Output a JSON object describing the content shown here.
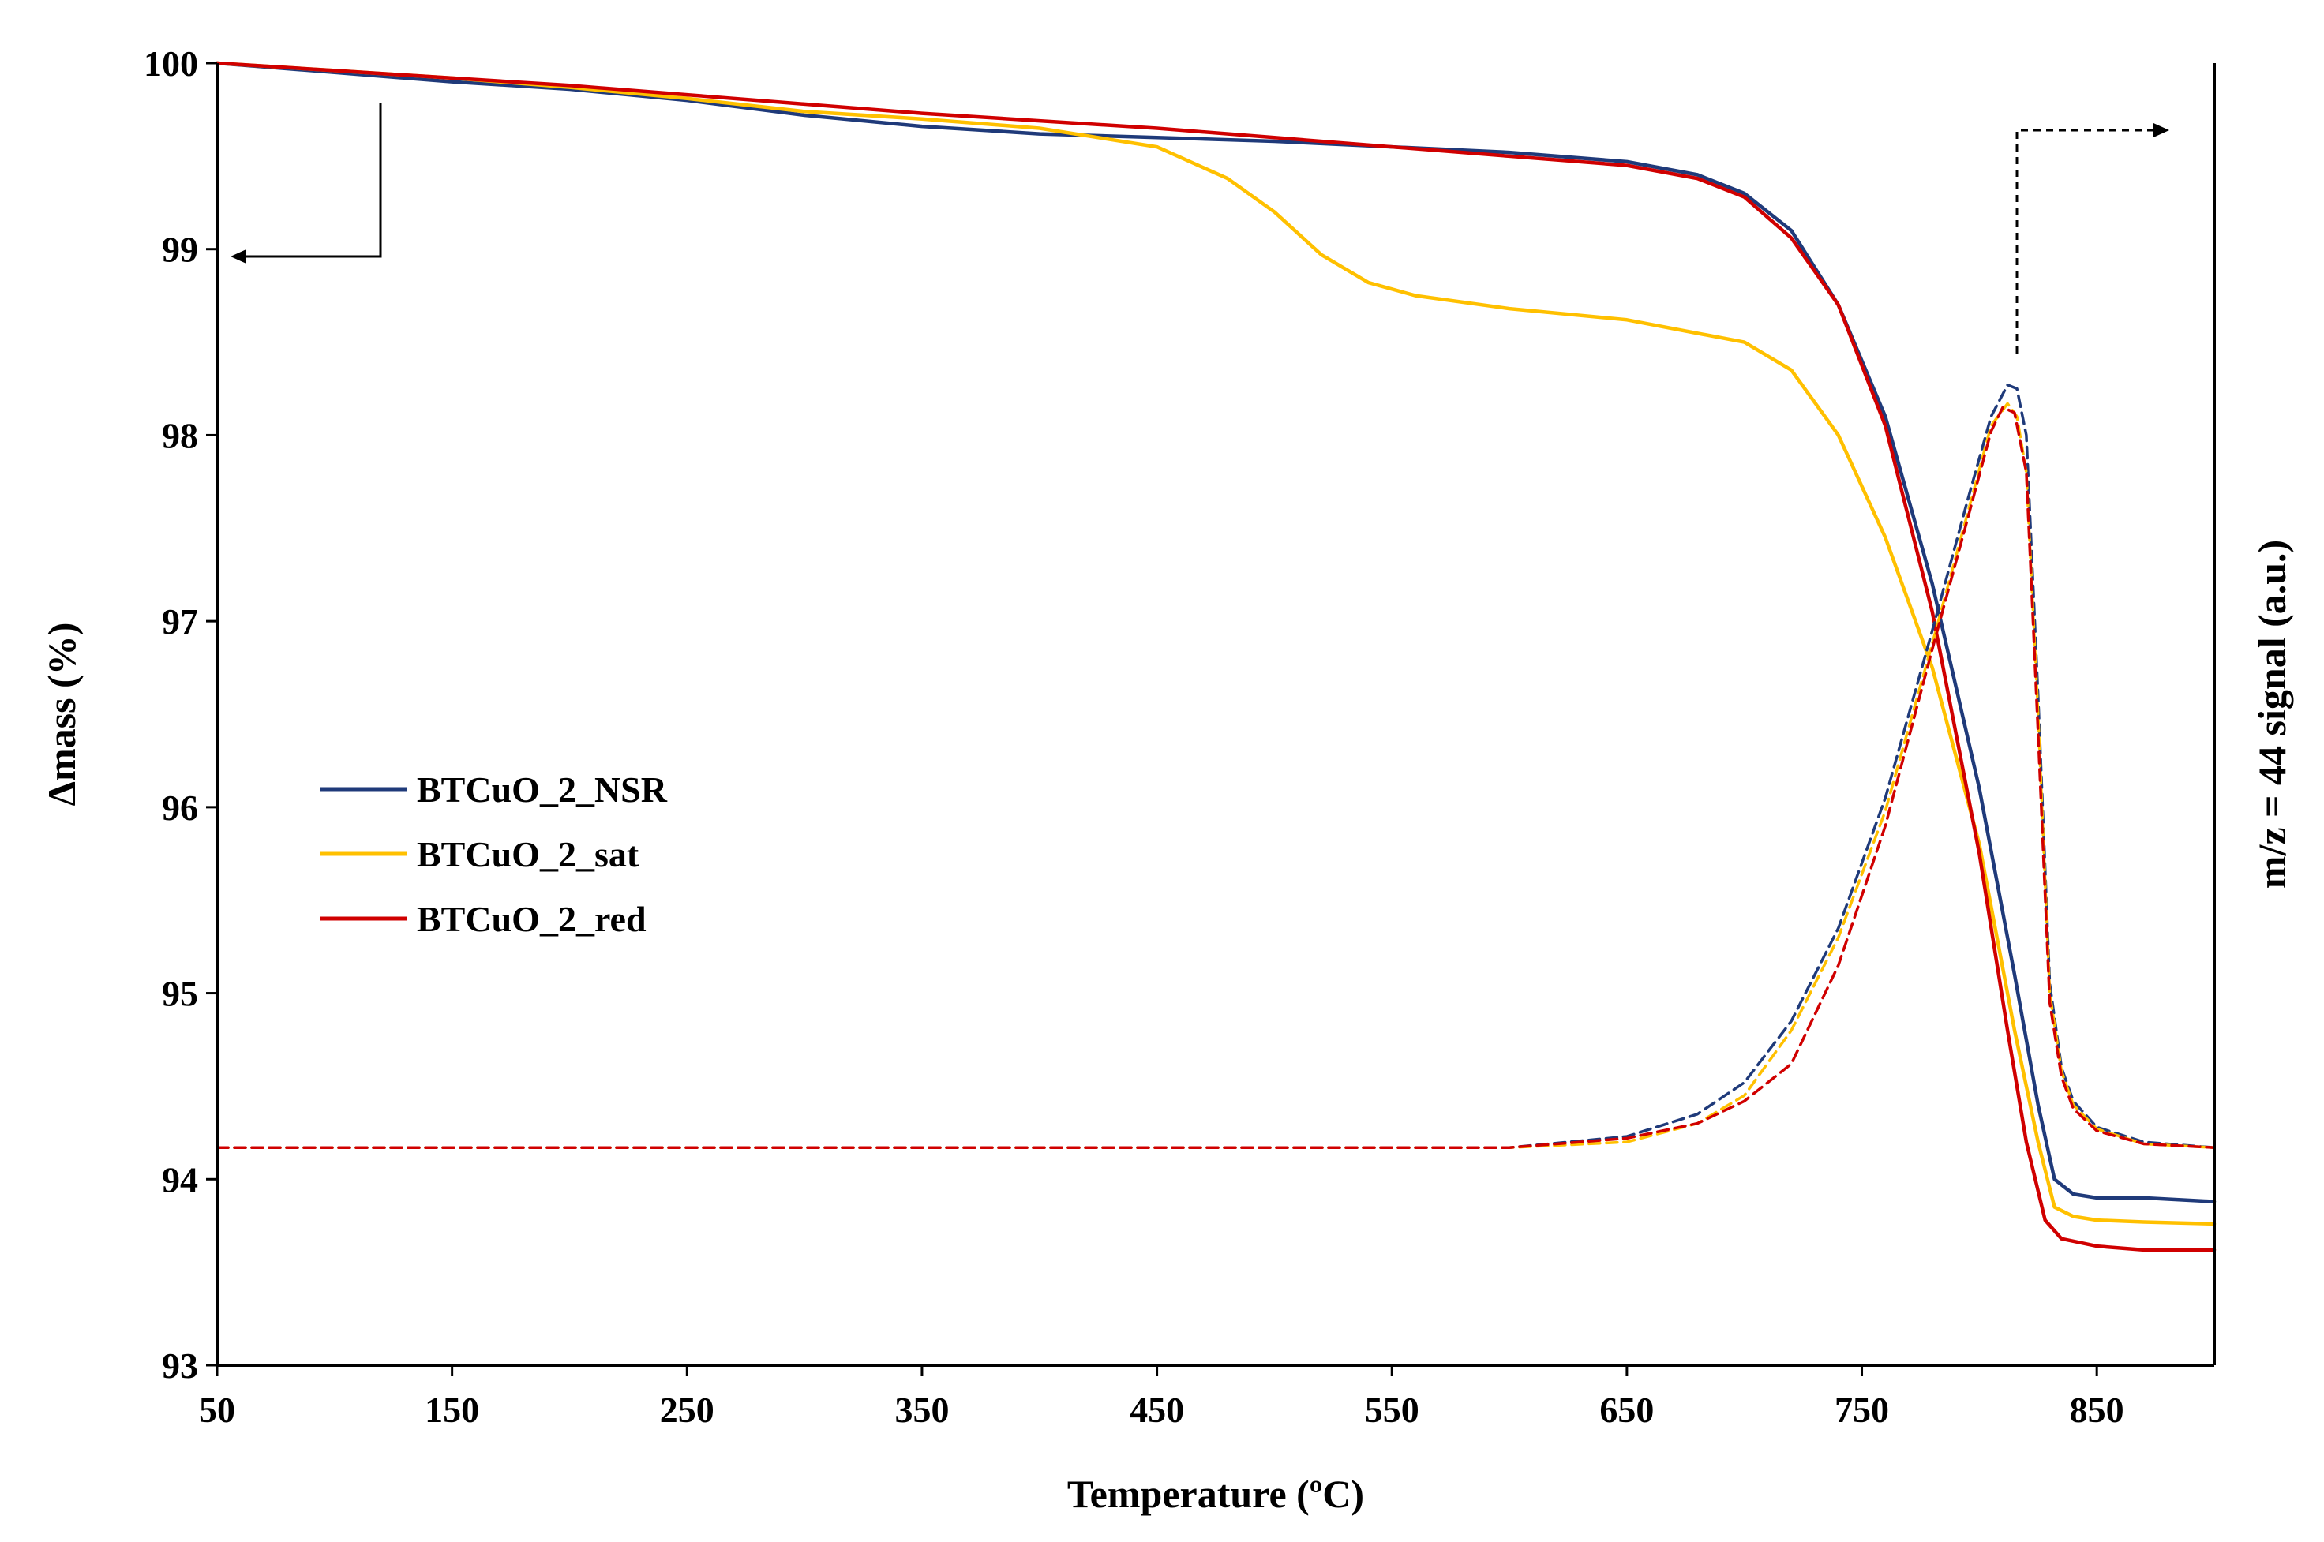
{
  "chart_data": {
    "type": "line",
    "title": "",
    "xlabel": "Temperature (ºC)",
    "ylabel": "Δmass (%)",
    "y2label": "m/z = 44 signal (a.u.)",
    "xlim": [
      50,
      900
    ],
    "ylim": [
      93,
      100
    ],
    "xticks": [
      50,
      150,
      250,
      350,
      450,
      550,
      650,
      750,
      850
    ],
    "yticks": [
      93,
      94,
      95,
      96,
      97,
      98,
      99,
      100
    ],
    "legend_position": "center-left",
    "series": [
      {
        "name": "BTCuO_2_NSR",
        "axis": "left",
        "style": "solid",
        "color": "#1f3a7a",
        "x": [
          50,
          100,
          150,
          200,
          250,
          300,
          350,
          400,
          450,
          500,
          550,
          600,
          650,
          680,
          700,
          720,
          740,
          760,
          780,
          800,
          815,
          825,
          832,
          840,
          850,
          870,
          900
        ],
        "y": [
          100,
          99.95,
          99.9,
          99.86,
          99.8,
          99.72,
          99.66,
          99.62,
          99.6,
          99.58,
          99.55,
          99.52,
          99.47,
          99.4,
          99.3,
          99.1,
          98.7,
          98.1,
          97.2,
          96.1,
          95.1,
          94.4,
          94.0,
          93.92,
          93.9,
          93.9,
          93.88
        ]
      },
      {
        "name": "BTCuO_2_sat",
        "axis": "left",
        "style": "solid",
        "color": "#ffc000",
        "x": [
          50,
          100,
          150,
          200,
          250,
          300,
          350,
          400,
          450,
          480,
          500,
          520,
          540,
          560,
          600,
          650,
          700,
          720,
          740,
          760,
          780,
          800,
          815,
          825,
          832,
          840,
          850,
          870,
          900
        ],
        "y": [
          100,
          99.96,
          99.92,
          99.87,
          99.81,
          99.74,
          99.7,
          99.65,
          99.55,
          99.38,
          99.2,
          98.97,
          98.82,
          98.75,
          98.68,
          98.62,
          98.5,
          98.35,
          98.0,
          97.45,
          96.75,
          95.8,
          94.8,
          94.2,
          93.85,
          93.8,
          93.78,
          93.77,
          93.76
        ]
      },
      {
        "name": "BTCuO_2_red",
        "axis": "left",
        "style": "solid",
        "color": "#d00000",
        "x": [
          50,
          100,
          150,
          200,
          250,
          300,
          350,
          400,
          450,
          500,
          550,
          600,
          650,
          680,
          700,
          720,
          740,
          760,
          780,
          800,
          812,
          820,
          828,
          835,
          850,
          870,
          900
        ],
        "y": [
          100,
          99.96,
          99.92,
          99.88,
          99.83,
          99.78,
          99.73,
          99.69,
          99.65,
          99.6,
          99.55,
          99.5,
          99.45,
          99.38,
          99.28,
          99.06,
          98.7,
          98.05,
          97.05,
          95.75,
          94.8,
          94.2,
          93.78,
          93.68,
          93.64,
          93.62,
          93.62
        ]
      },
      {
        "name": "BTCuO_2_NSR m/z=44",
        "axis": "right",
        "style": "dashed",
        "color": "#1f3a7a",
        "x": [
          50,
          600,
          650,
          680,
          700,
          720,
          740,
          760,
          780,
          795,
          805,
          812,
          816,
          820,
          825,
          830,
          835,
          840,
          850,
          870,
          900
        ],
        "y": [
          94.17,
          94.17,
          94.23,
          94.35,
          94.52,
          94.85,
          95.35,
          96.05,
          96.95,
          97.65,
          98.1,
          98.27,
          98.25,
          98.0,
          96.6,
          95.05,
          94.6,
          94.42,
          94.28,
          94.2,
          94.17
        ]
      },
      {
        "name": "BTCuO_2_sat m/z=44",
        "axis": "right",
        "style": "dashed",
        "color": "#ffc000",
        "x": [
          50,
          600,
          650,
          680,
          700,
          720,
          740,
          760,
          780,
          795,
          805,
          812,
          816,
          820,
          825,
          830,
          835,
          840,
          850,
          870,
          900
        ],
        "y": [
          94.17,
          94.17,
          94.2,
          94.3,
          94.45,
          94.8,
          95.3,
          95.98,
          96.88,
          97.58,
          98.05,
          98.17,
          98.1,
          97.8,
          96.5,
          95.0,
          94.58,
          94.4,
          94.27,
          94.19,
          94.17
        ]
      },
      {
        "name": "BTCuO_2_red m/z=44",
        "axis": "right",
        "style": "dashed",
        "color": "#d00000",
        "x": [
          50,
          600,
          650,
          680,
          700,
          720,
          740,
          760,
          780,
          795,
          805,
          810,
          815,
          820,
          825,
          830,
          835,
          840,
          850,
          870,
          900
        ],
        "y": [
          94.17,
          94.17,
          94.22,
          94.3,
          94.42,
          94.62,
          95.15,
          95.9,
          96.85,
          97.55,
          98.02,
          98.15,
          98.12,
          97.8,
          96.4,
          94.95,
          94.55,
          94.38,
          94.26,
          94.19,
          94.17
        ]
      }
    ],
    "legend": [
      "BTCuO_2_NSR",
      "BTCuO_2_sat",
      "BTCuO_2_red"
    ],
    "annotations": [
      "left-pointing arrow: solid curves read on left axis",
      "right-pointing dashed arrow: dashed curves read on right axis"
    ]
  }
}
